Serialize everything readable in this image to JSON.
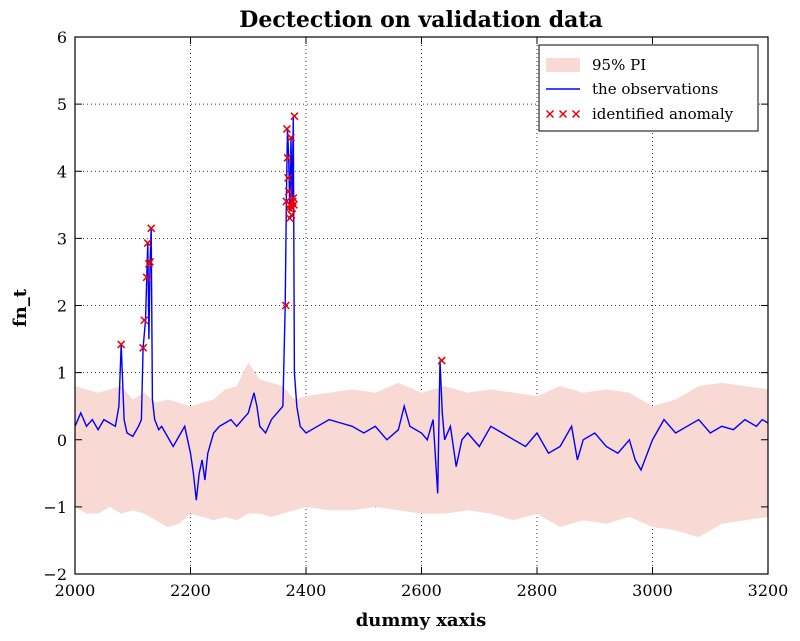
{
  "chart_data": {
    "type": "line",
    "title": "Dectection on validation data",
    "xlabel": "dummy xaxis",
    "ylabel": "fn_t",
    "xlim": [
      2000,
      3200
    ],
    "ylim": [
      -2,
      6
    ],
    "x_ticks": [
      2000,
      2200,
      2400,
      2600,
      2800,
      3000,
      3200
    ],
    "y_ticks": [
      -2,
      -1,
      0,
      1,
      2,
      3,
      4,
      5,
      6
    ],
    "x_tick_labels": [
      "2000",
      "2200",
      "2400",
      "2600",
      "2800",
      "3000",
      "3200"
    ],
    "y_tick_labels": [
      "−2",
      "−1",
      "0",
      "1",
      "2",
      "3",
      "4",
      "5",
      "6"
    ],
    "grid": true,
    "legend_position": "top-right",
    "legend": [
      "95% PI",
      "the observations",
      "identified anomaly"
    ],
    "colors": {
      "band": "#f8d9d4",
      "observations": "#0000ff",
      "anomaly": "#e8000b"
    },
    "band": {
      "x": [
        2000,
        2020,
        2040,
        2060,
        2080,
        2100,
        2120,
        2140,
        2160,
        2180,
        2200,
        2220,
        2240,
        2260,
        2280,
        2300,
        2320,
        2340,
        2360,
        2380,
        2400,
        2440,
        2480,
        2520,
        2560,
        2600,
        2640,
        2680,
        2720,
        2760,
        2800,
        2840,
        2880,
        2920,
        2960,
        3000,
        3040,
        3080,
        3120,
        3160,
        3200
      ],
      "upper": [
        0.8,
        0.75,
        0.7,
        0.75,
        0.8,
        0.6,
        0.7,
        0.55,
        0.6,
        0.55,
        0.5,
        0.55,
        0.6,
        0.75,
        0.8,
        1.15,
        0.9,
        0.85,
        0.8,
        0.6,
        0.65,
        0.7,
        0.75,
        0.7,
        0.85,
        0.7,
        0.8,
        0.7,
        0.75,
        0.7,
        0.65,
        0.8,
        0.7,
        0.75,
        0.7,
        0.5,
        0.6,
        0.8,
        0.85,
        0.8,
        0.75
      ],
      "lower": [
        -1.0,
        -1.1,
        -1.1,
        -1.0,
        -1.1,
        -1.05,
        -1.1,
        -1.2,
        -1.3,
        -1.25,
        -1.1,
        -1.15,
        -1.2,
        -1.15,
        -1.2,
        -1.1,
        -1.1,
        -1.15,
        -1.1,
        -1.05,
        -1.0,
        -1.05,
        -1.05,
        -1.0,
        -1.05,
        -1.1,
        -1.1,
        -1.05,
        -1.1,
        -1.2,
        -1.1,
        -1.3,
        -1.2,
        -1.25,
        -1.15,
        -1.3,
        -1.35,
        -1.45,
        -1.25,
        -1.2,
        -1.15
      ]
    },
    "observations": {
      "x": [
        2000,
        2010,
        2020,
        2030,
        2040,
        2050,
        2060,
        2070,
        2076,
        2080,
        2085,
        2090,
        2100,
        2110,
        2115,
        2118,
        2122,
        2126,
        2128,
        2130,
        2132,
        2134,
        2138,
        2145,
        2150,
        2160,
        2170,
        2180,
        2190,
        2200,
        2205,
        2210,
        2215,
        2220,
        2225,
        2230,
        2240,
        2250,
        2260,
        2270,
        2280,
        2290,
        2300,
        2310,
        2315,
        2320,
        2330,
        2340,
        2350,
        2360,
        2364,
        2366,
        2368,
        2370,
        2372,
        2374,
        2376,
        2378,
        2380,
        2384,
        2390,
        2400,
        2420,
        2440,
        2460,
        2480,
        2500,
        2520,
        2540,
        2560,
        2570,
        2580,
        2600,
        2610,
        2620,
        2628,
        2632,
        2634,
        2636,
        2640,
        2650,
        2660,
        2670,
        2680,
        2700,
        2720,
        2740,
        2760,
        2780,
        2800,
        2820,
        2840,
        2860,
        2870,
        2880,
        2900,
        2920,
        2940,
        2960,
        2970,
        2980,
        3000,
        3020,
        3040,
        3060,
        3080,
        3100,
        3120,
        3140,
        3160,
        3180,
        3190,
        3200
      ],
      "y": [
        0.2,
        0.4,
        0.2,
        0.3,
        0.15,
        0.3,
        0.25,
        0.2,
        0.5,
        1.42,
        0.3,
        0.1,
        0.05,
        0.2,
        0.3,
        1.37,
        1.78,
        2.95,
        1.5,
        2.65,
        3.15,
        0.6,
        0.3,
        0.15,
        0.2,
        0.05,
        -0.1,
        0.05,
        0.2,
        -0.2,
        -0.5,
        -0.9,
        -0.5,
        -0.3,
        -0.6,
        -0.2,
        0.1,
        0.2,
        0.25,
        0.3,
        0.2,
        0.3,
        0.4,
        0.7,
        0.5,
        0.2,
        0.1,
        0.3,
        0.4,
        0.5,
        2.0,
        3.6,
        4.65,
        4.2,
        3.4,
        4.5,
        3.5,
        4.82,
        1.0,
        0.5,
        0.2,
        0.1,
        0.2,
        0.3,
        0.25,
        0.2,
        0.1,
        0.2,
        0.0,
        0.15,
        0.5,
        0.2,
        0.1,
        0.0,
        0.3,
        -0.8,
        1.18,
        0.8,
        0.4,
        0.0,
        0.2,
        -0.4,
        0.0,
        0.1,
        -0.1,
        0.2,
        0.1,
        0.0,
        -0.1,
        0.1,
        -0.2,
        -0.1,
        0.2,
        -0.3,
        0.0,
        0.1,
        -0.1,
        -0.2,
        0.0,
        -0.3,
        -0.45,
        0.0,
        0.3,
        0.1,
        0.2,
        0.3,
        0.1,
        0.2,
        0.15,
        0.3,
        0.2,
        0.3,
        0.25
      ]
    },
    "anomalies": {
      "x": [
        2080,
        2118,
        2120,
        2124,
        2126,
        2128,
        2130,
        2132,
        2365,
        2366,
        2367,
        2368,
        2369,
        2370,
        2371,
        2372,
        2373,
        2374,
        2375,
        2376,
        2377,
        2378,
        2379,
        2380,
        2635
      ],
      "y": [
        1.42,
        1.37,
        1.78,
        2.42,
        2.93,
        2.62,
        2.65,
        3.15,
        2.0,
        3.55,
        4.63,
        4.2,
        3.9,
        3.7,
        3.45,
        3.3,
        3.5,
        4.5,
        3.35,
        3.45,
        3.55,
        3.6,
        3.5,
        4.82,
        1.18
      ]
    }
  }
}
